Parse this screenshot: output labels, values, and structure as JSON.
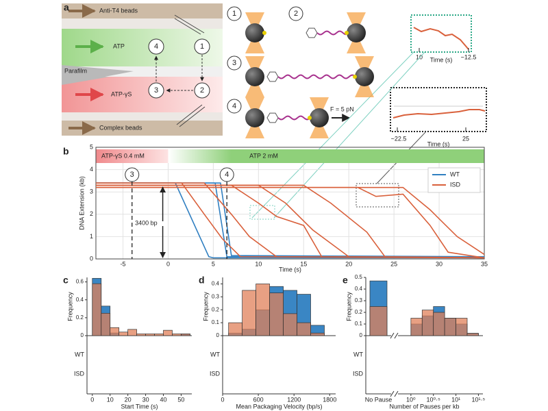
{
  "diagram": {
    "panel_labels": [
      "a",
      "b",
      "c",
      "d",
      "e"
    ],
    "channels": [
      "Anti-T4 beads",
      "ATP",
      "Parafilm",
      "ATP-γS",
      "Complex beads"
    ],
    "steps": [
      "1",
      "2",
      "3",
      "4"
    ],
    "force": "F = 5 pN",
    "insets": [
      {
        "x_label": "Time (s)",
        "ticks": [
          "10",
          "~12.5"
        ]
      },
      {
        "x_label": "Time (s)",
        "ticks": [
          "~22.5",
          "25"
        ]
      }
    ]
  },
  "chart_data": [
    {
      "type": "line",
      "y_label": "DNA Extension (kb)",
      "x_label": "Time (s)",
      "xlim": [
        -8,
        35
      ],
      "ylim": [
        0,
        5
      ],
      "xticks": [
        -5,
        0,
        5,
        10,
        15,
        20,
        25,
        30,
        35
      ],
      "yticks": [
        0,
        1,
        2,
        3,
        4,
        5
      ],
      "grid": true,
      "legend": "upper right",
      "conditions": [
        "ATP-γS 0.4 mM",
        "ATP 2 mM"
      ],
      "annotation": "3400 bp",
      "markers": [
        {
          "x": -4,
          "label": "3"
        },
        {
          "x": 6.5,
          "label": "4"
        }
      ],
      "series": [
        {
          "name": "WT",
          "color": "#2f7fc1",
          "traces": [
            {
              "x": [
                -8,
                0.8,
                4.5,
                5,
                35
              ],
              "values": [
                3.4,
                3.4,
                0.1,
                0.05,
                0.05
              ]
            },
            {
              "x": [
                -8,
                5.2,
                6.5,
                35
              ],
              "values": [
                3.4,
                3.4,
                0.1,
                0.1
              ]
            },
            {
              "x": [
                -8,
                5.8,
                7,
                35
              ],
              "values": [
                3.4,
                3.4,
                0.15,
                0.1
              ]
            }
          ]
        },
        {
          "name": "ISD",
          "color": "#d9603b",
          "traces": [
            {
              "x": [
                -8,
                1.5,
                4,
                6,
                8,
                35
              ],
              "values": [
                3.4,
                3.4,
                2,
                0.9,
                0.1,
                0.05
              ]
            },
            {
              "x": [
                -8,
                4,
                7,
                9,
                12,
                35
              ],
              "values": [
                3.4,
                3.4,
                2,
                1,
                0.1,
                0.05
              ]
            },
            {
              "x": [
                -8,
                7,
                10,
                12,
                15,
                17,
                35
              ],
              "values": [
                3.3,
                3.3,
                2.5,
                1.9,
                1.5,
                0.1,
                0.05
              ]
            },
            {
              "x": [
                -8,
                10,
                13,
                16,
                20,
                35
              ],
              "values": [
                3.3,
                3.3,
                2.5,
                1.3,
                0.1,
                0.05
              ]
            },
            {
              "x": [
                -8,
                15,
                18,
                22,
                24,
                35
              ],
              "values": [
                3.3,
                3.3,
                2.5,
                1.2,
                0.1,
                0.05
              ]
            },
            {
              "x": [
                -8,
                21,
                23,
                26,
                29,
                31,
                35
              ],
              "values": [
                3.2,
                3.2,
                2.8,
                2.9,
                1.5,
                0.3,
                0.05
              ]
            },
            {
              "x": [
                -8,
                26,
                29,
                32,
                35
              ],
              "values": [
                3.2,
                3.2,
                2.2,
                1.0,
                0.2
              ]
            }
          ]
        }
      ]
    },
    {
      "type": "histogram",
      "y_label": "Frequency",
      "x_label": "Start Time (s)",
      "bins": [
        0,
        5,
        10,
        15,
        20,
        25,
        30,
        35,
        40,
        45,
        50,
        55
      ],
      "xlim": [
        -3,
        56
      ],
      "xticks": [
        0,
        10,
        20,
        30,
        40,
        50
      ],
      "ylim": [
        0,
        0.65
      ],
      "yticks": [
        0,
        0.2,
        0.4,
        0.6
      ],
      "series": [
        {
          "name": "WT",
          "color": "#2f7fc1",
          "values": [
            0.64,
            0.33,
            0.03,
            0,
            0,
            0,
            0,
            0,
            0,
            0,
            0.02
          ]
        },
        {
          "name": "ISD",
          "color": "#e0805a",
          "values": [
            0.58,
            0.25,
            0.09,
            0.04,
            0.07,
            0.02,
            0.02,
            0.02,
            0.06,
            0.02,
            0.02
          ]
        }
      ]
    },
    {
      "type": "histogram",
      "y_label": "Frequency",
      "x_label": "Mean Packaging Velocity (bp/s)",
      "bins": [
        100,
        330,
        560,
        790,
        1020,
        1250,
        1480,
        1710
      ],
      "xlim": [
        0,
        1900
      ],
      "xticks": [
        0,
        600,
        1200,
        1800
      ],
      "ylim": [
        0,
        0.45
      ],
      "yticks": [
        0,
        0.1,
        0.2,
        0.3,
        0.4
      ],
      "series": [
        {
          "name": "WT",
          "color": "#2f7fc1",
          "values": [
            0.02,
            0.05,
            0.2,
            0.38,
            0.35,
            0.32,
            0.08
          ]
        },
        {
          "name": "ISD",
          "color": "#e0805a",
          "values": [
            0.1,
            0.35,
            0.4,
            0.33,
            0.17,
            0.1,
            0.02
          ]
        }
      ]
    },
    {
      "type": "histogram",
      "y_label": "Frequency",
      "x_label": "Number of Pauses per kb",
      "no_pause_label": "No Pause",
      "bins": [
        0,
        0.25,
        0.5,
        0.75,
        1.0,
        1.25,
        1.5
      ],
      "xlim": [
        -0.15,
        1.6
      ],
      "xticks": [
        {
          "value": 0,
          "label": "10⁰"
        },
        {
          "value": 0.5,
          "label": "10⁰·⁵"
        },
        {
          "value": 1,
          "label": "10¹"
        },
        {
          "value": 1.5,
          "label": "10¹·⁵"
        }
      ],
      "ylim": [
        0,
        0.5
      ],
      "yticks": [
        0,
        0.1,
        0.2,
        0.3,
        0.4,
        0.5
      ],
      "series": [
        {
          "name": "WT",
          "color": "#2f7fc1",
          "no_pause": 0.47,
          "values": [
            0.1,
            0.17,
            0.25,
            0.15,
            0.1,
            0.02
          ]
        },
        {
          "name": "ISD",
          "color": "#e0805a",
          "no_pause": 0.25,
          "values": [
            0.15,
            0.22,
            0.2,
            0.15,
            0.15,
            0.02
          ]
        }
      ]
    }
  ]
}
